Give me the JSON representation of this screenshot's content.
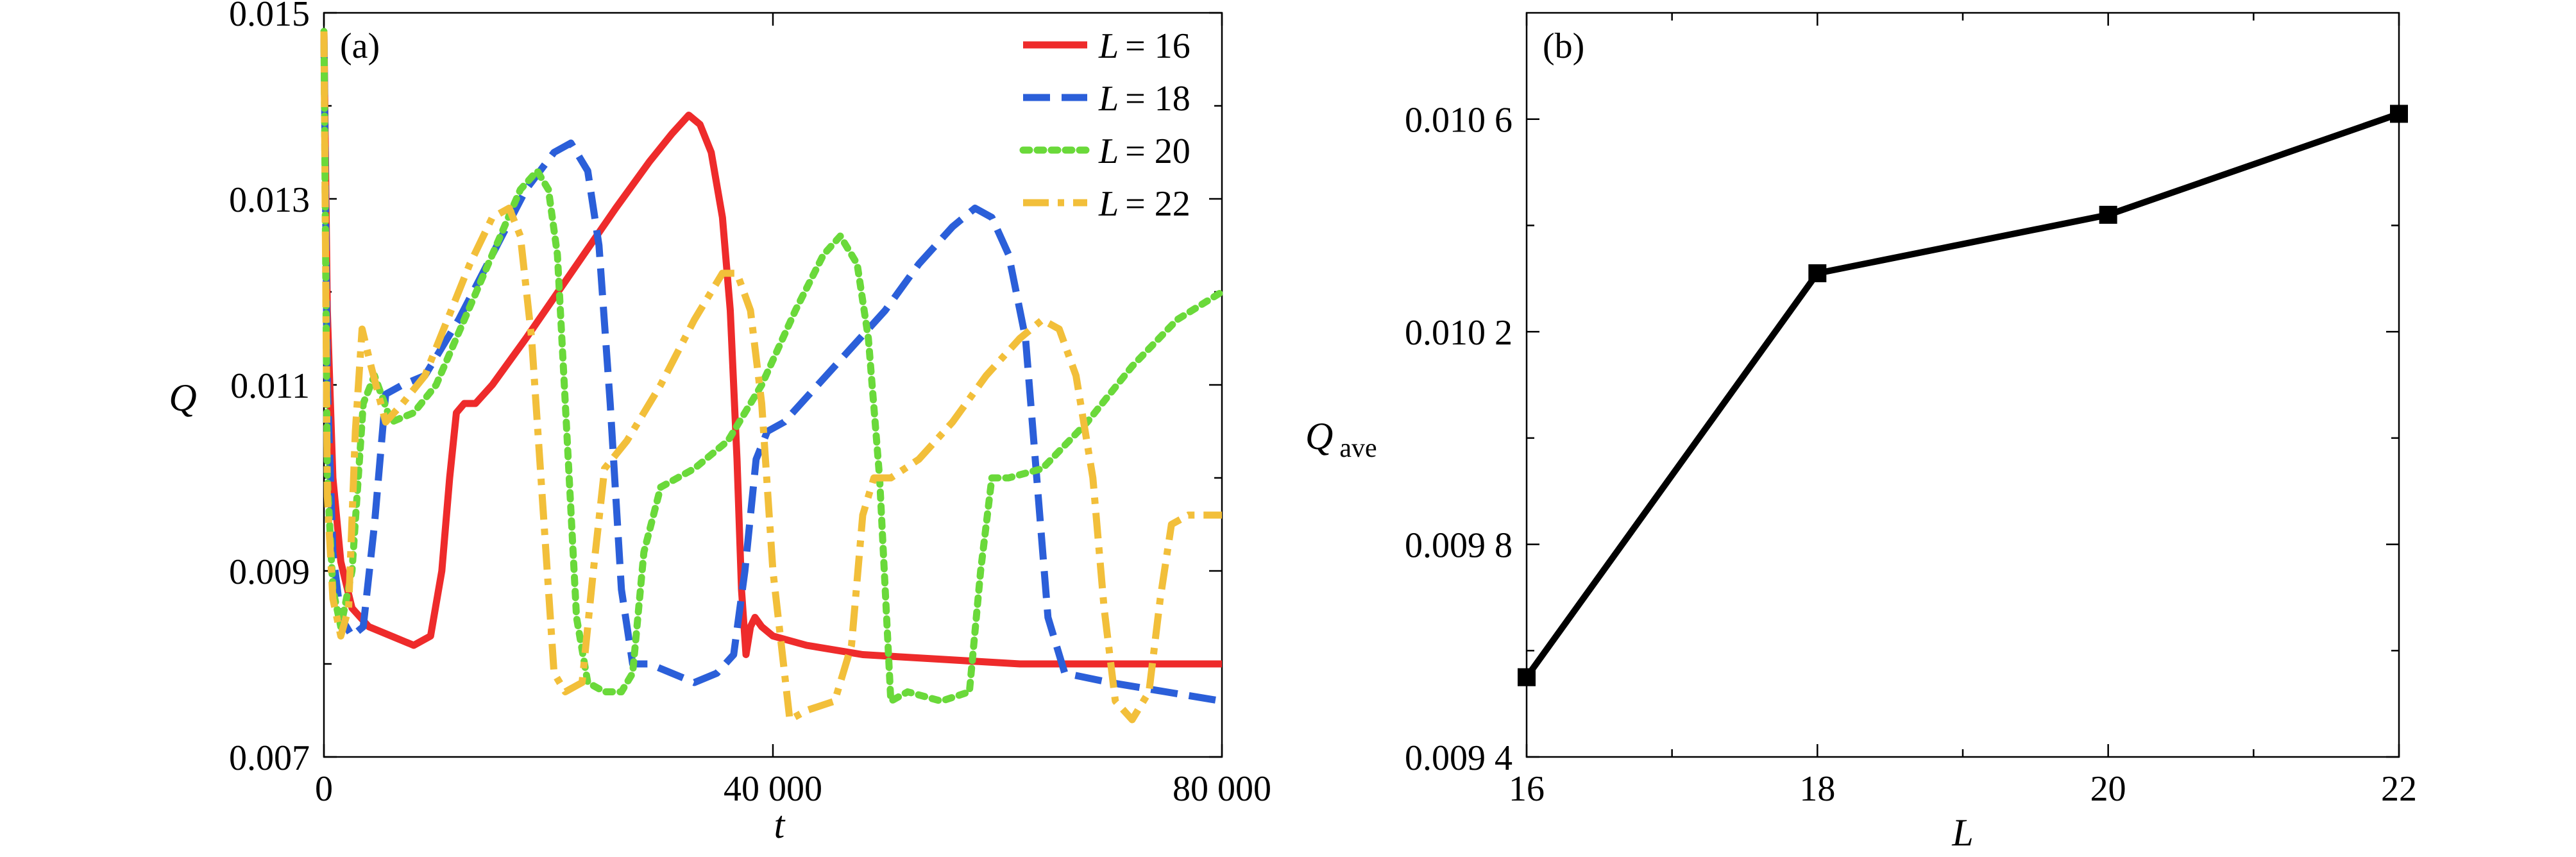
{
  "chart_data": [
    {
      "type": "line",
      "panel_label": "(a)",
      "xlabel": "t",
      "ylabel": "Q",
      "xlim": [
        0,
        80000
      ],
      "ylim": [
        0.007,
        0.015
      ],
      "x_ticks": [
        0,
        40000,
        80000
      ],
      "x_tick_labels": [
        "0",
        "40 000",
        "80 000"
      ],
      "y_ticks": [
        0.007,
        0.009,
        0.011,
        0.013,
        0.015
      ],
      "y_tick_labels": [
        "0.007",
        "0.009",
        "0.011",
        "0.013",
        "0.015"
      ],
      "legend_position": "top-right",
      "series": [
        {
          "name": "L = 16",
          "legend_var": "L",
          "legend_value": "= 16",
          "color": "#ee2b2b",
          "dash": "solid",
          "x": [
            0,
            300,
            800,
            1500,
            2500,
            4000,
            6000,
            8000,
            9500,
            10500,
            11200,
            11800,
            12500,
            13500,
            15000,
            18000,
            22000,
            26000,
            29000,
            31000,
            32500,
            33500,
            34500,
            35500,
            36200,
            36800,
            37200,
            37600,
            38000,
            38400,
            39000,
            40000,
            43000,
            48000,
            55000,
            62000,
            70000,
            80000
          ],
          "y": [
            0.0148,
            0.0118,
            0.01,
            0.0091,
            0.0086,
            0.0084,
            0.0083,
            0.0082,
            0.0083,
            0.009,
            0.01,
            0.0107,
            0.0108,
            0.0108,
            0.011,
            0.0115,
            0.0122,
            0.0129,
            0.0134,
            0.0137,
            0.0139,
            0.0138,
            0.0135,
            0.0128,
            0.0118,
            0.0102,
            0.0088,
            0.0081,
            0.0084,
            0.0085,
            0.0084,
            0.0083,
            0.0082,
            0.0081,
            0.00805,
            0.008,
            0.008,
            0.008
          ]
        },
        {
          "name": "L = 18",
          "legend_var": "L",
          "legend_value": "= 18",
          "color": "#2b5fd9",
          "dash": "dashed",
          "x": [
            0,
            300,
            800,
            1500,
            2500,
            3500,
            4500,
            5500,
            7000,
            9000,
            12000,
            15000,
            18000,
            20500,
            22000,
            23500,
            24500,
            25500,
            26500,
            27500,
            29000,
            31000,
            33000,
            35000,
            36500,
            37500,
            38500,
            39500,
            41000,
            44000,
            47000,
            50000,
            53000,
            56000,
            58000,
            59500,
            61000,
            62500,
            63500,
            64500,
            66000,
            70000,
            75000,
            80000
          ],
          "y": [
            0.0148,
            0.011,
            0.0092,
            0.0085,
            0.0083,
            0.0084,
            0.0095,
            0.0109,
            0.011,
            0.0111,
            0.0117,
            0.0124,
            0.0131,
            0.0135,
            0.0136,
            0.0133,
            0.0125,
            0.0108,
            0.0088,
            0.008,
            0.008,
            0.0079,
            0.0078,
            0.0079,
            0.0081,
            0.009,
            0.0102,
            0.0105,
            0.0106,
            0.011,
            0.0114,
            0.0118,
            0.0123,
            0.0127,
            0.0129,
            0.0128,
            0.0124,
            0.0115,
            0.01,
            0.0085,
            0.0079,
            0.0078,
            0.0077,
            0.0076
          ]
        },
        {
          "name": "L = 20",
          "legend_var": "L",
          "legend_value": "= 20",
          "color": "#6ad93a",
          "dash": "dotted",
          "x": [
            0,
            300,
            800,
            1500,
            2500,
            3500,
            4500,
            6000,
            8000,
            10000,
            12500,
            15000,
            17500,
            19000,
            20000,
            20800,
            21500,
            22500,
            23500,
            25000,
            26500,
            27500,
            28500,
            30000,
            33000,
            36000,
            39000,
            42000,
            44500,
            46000,
            47500,
            48500,
            49500,
            50500,
            52000,
            55000,
            57500,
            58500,
            59500,
            61000,
            64000,
            68000,
            72000,
            76000,
            80000
          ],
          "y": [
            0.0148,
            0.01,
            0.0088,
            0.0084,
            0.009,
            0.0108,
            0.0111,
            0.0106,
            0.0107,
            0.011,
            0.0117,
            0.0124,
            0.0131,
            0.0133,
            0.0131,
            0.0124,
            0.0108,
            0.0085,
            0.0078,
            0.0077,
            0.0077,
            0.0079,
            0.0092,
            0.0099,
            0.0101,
            0.0104,
            0.011,
            0.0118,
            0.0124,
            0.0126,
            0.0123,
            0.0115,
            0.01,
            0.0076,
            0.0077,
            0.0076,
            0.0077,
            0.009,
            0.01,
            0.01,
            0.0101,
            0.0106,
            0.0112,
            0.0117,
            0.012
          ]
        },
        {
          "name": "L = 22",
          "legend_var": "L",
          "legend_value": "= 22",
          "color": "#f2bf3a",
          "dash": "dashdot",
          "x": [
            0,
            300,
            800,
            1500,
            2200,
            2800,
            3400,
            4200,
            5500,
            7000,
            9000,
            11000,
            13000,
            15000,
            16500,
            17500,
            18500,
            19500,
            20500,
            21500,
            23000,
            24000,
            25000,
            27000,
            30000,
            33000,
            35500,
            36800,
            38000,
            39000,
            40000,
            41500,
            43000,
            45500,
            47000,
            48000,
            49000,
            50500,
            53000,
            56000,
            59000,
            62000,
            64000,
            65500,
            67000,
            68500,
            69500,
            70500,
            72000,
            73500,
            74500,
            75500,
            77000,
            80000
          ],
          "y": [
            0.0148,
            0.0098,
            0.0087,
            0.0083,
            0.0086,
            0.0105,
            0.0116,
            0.0112,
            0.0106,
            0.0108,
            0.0111,
            0.0117,
            0.0123,
            0.0128,
            0.0129,
            0.0126,
            0.0115,
            0.0097,
            0.0079,
            0.0077,
            0.0078,
            0.009,
            0.0101,
            0.0104,
            0.011,
            0.0117,
            0.0122,
            0.0122,
            0.0118,
            0.0108,
            0.009,
            0.0074,
            0.0075,
            0.0076,
            0.0082,
            0.0096,
            0.01,
            0.01,
            0.0102,
            0.0106,
            0.0111,
            0.0115,
            0.0117,
            0.0116,
            0.0111,
            0.01,
            0.0086,
            0.0076,
            0.0074,
            0.0077,
            0.0087,
            0.0095,
            0.0096,
            0.0096
          ]
        }
      ]
    },
    {
      "type": "line",
      "panel_label": "(b)",
      "xlabel": "L",
      "ylabel": "Q",
      "ylabel_sub": "ave",
      "xlim": [
        16,
        22
      ],
      "ylim": [
        0.0094,
        0.0108
      ],
      "x_ticks": [
        16,
        18,
        20,
        22
      ],
      "x_tick_labels": [
        "16",
        "18",
        "20",
        "22"
      ],
      "y_ticks": [
        0.0094,
        0.0098,
        0.0102,
        0.0106
      ],
      "y_tick_labels": [
        "0.009 4",
        "0.009 8",
        "0.010 2",
        "0.010 6"
      ],
      "series": [
        {
          "color": "#000000",
          "marker": "square",
          "x": [
            16,
            18,
            20,
            22
          ],
          "y": [
            0.00955,
            0.01031,
            0.01042,
            0.01061
          ]
        }
      ]
    }
  ]
}
